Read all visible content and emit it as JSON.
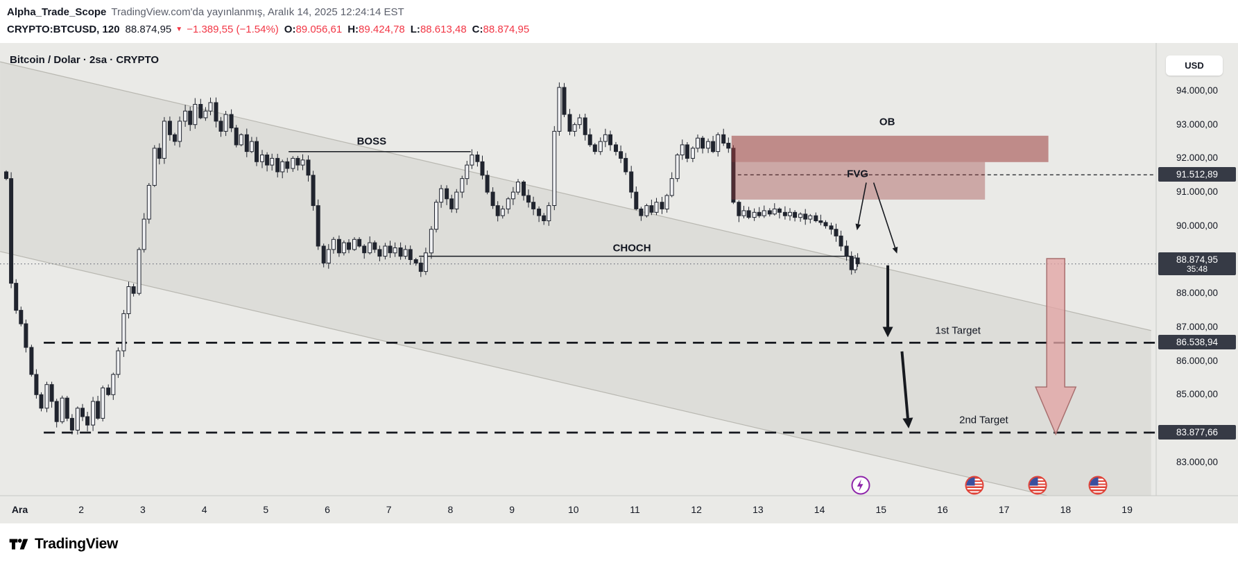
{
  "header": {
    "author": "Alpha_Trade_Scope",
    "published": "TradingView.com'da yayınlanmış, Aralık 14, 2025 12:24:14 EST",
    "symbol": "CRYPTO:BTCUSD, 120",
    "last_price": "88.874,95",
    "direction_icon": "▼",
    "change": "−1.389,55 (−1.54%)",
    "ohlc": [
      {
        "label": "O:",
        "value": "89.056,61"
      },
      {
        "label": "H:",
        "value": "89.424,78"
      },
      {
        "label": "L:",
        "value": "88.613,48"
      },
      {
        "label": "C:",
        "value": "88.874,95"
      }
    ]
  },
  "chart": {
    "legend": "Bitcoin / Dolar · 2sa · CRYPTO",
    "currency_button": "USD"
  },
  "price_axis": {
    "ticks": [
      {
        "text": "94.000,00",
        "price": 94000
      },
      {
        "text": "93.000,00",
        "price": 93000
      },
      {
        "text": "92.000,00",
        "price": 92000
      },
      {
        "text": "91.000,00",
        "price": 91000
      },
      {
        "text": "90.000,00",
        "price": 90000
      },
      {
        "text": "88.000,00",
        "price": 88000
      },
      {
        "text": "87.000,00",
        "price": 87000
      },
      {
        "text": "86.000,00",
        "price": 86000
      },
      {
        "text": "85.000,00",
        "price": 85000
      },
      {
        "text": "83.000,00",
        "price": 83000
      }
    ],
    "badges": [
      {
        "text": "91.512,89",
        "price": 91512.89
      },
      {
        "text": "88.874,95",
        "sub": "35:48",
        "price": 88874.95,
        "current": true
      },
      {
        "text": "86.538,94",
        "price": 86538.94
      },
      {
        "text": "83.877,66",
        "price": 83877.66
      }
    ]
  },
  "time_axis": {
    "labels": [
      {
        "text": "Ara",
        "day": 1,
        "bold": true
      },
      {
        "text": "2",
        "day": 2
      },
      {
        "text": "3",
        "day": 3
      },
      {
        "text": "4",
        "day": 4
      },
      {
        "text": "5",
        "day": 5
      },
      {
        "text": "6",
        "day": 6
      },
      {
        "text": "7",
        "day": 7
      },
      {
        "text": "8",
        "day": 8
      },
      {
        "text": "9",
        "day": 9
      },
      {
        "text": "10",
        "day": 10
      },
      {
        "text": "11",
        "day": 11
      },
      {
        "text": "12",
        "day": 12
      },
      {
        "text": "13",
        "day": 13
      },
      {
        "text": "14",
        "day": 14
      },
      {
        "text": "15",
        "day": 15
      },
      {
        "text": "16",
        "day": 16
      },
      {
        "text": "17",
        "day": 17
      },
      {
        "text": "18",
        "day": 18
      },
      {
        "text": "19",
        "day": 19
      }
    ]
  },
  "events": [
    {
      "icon": "lightning",
      "day": 14.67
    },
    {
      "icon": "us-flag",
      "day": 16.52
    },
    {
      "icon": "us-flag",
      "day": 17.55
    },
    {
      "icon": "us-flag",
      "day": 18.53
    }
  ],
  "chart_data": {
    "type": "candlestick",
    "title": "Bitcoin / Dolar · 2sa · CRYPTO",
    "symbol": "BTCUSD",
    "interval_minutes": 120,
    "x_unit": "day of December 2025",
    "x_range": [
      0.7,
      19.5
    ],
    "y_range": [
      82500,
      95500
    ],
    "last": 88874.95,
    "seed": 7,
    "key_points": [
      [
        0.78,
        91400
      ],
      [
        0.86,
        88300
      ],
      [
        0.94,
        87500
      ],
      [
        1.02,
        87100
      ],
      [
        1.1,
        86400
      ],
      [
        1.19,
        85600
      ],
      [
        1.27,
        85000
      ],
      [
        1.35,
        84600
      ],
      [
        1.44,
        85300
      ],
      [
        1.52,
        84800
      ],
      [
        1.6,
        84200
      ],
      [
        1.69,
        84900
      ],
      [
        1.77,
        84300
      ],
      [
        1.85,
        83950
      ],
      [
        1.94,
        84600
      ],
      [
        2.02,
        84350
      ],
      [
        2.1,
        84100
      ],
      [
        2.19,
        84800
      ],
      [
        2.27,
        84300
      ],
      [
        2.35,
        85200
      ],
      [
        2.44,
        85000
      ],
      [
        2.52,
        85600
      ],
      [
        2.6,
        86300
      ],
      [
        2.69,
        87400
      ],
      [
        2.77,
        88200
      ],
      [
        2.85,
        88000
      ],
      [
        2.94,
        89300
      ],
      [
        3.02,
        90200
      ],
      [
        3.1,
        91200
      ],
      [
        3.19,
        92300
      ],
      [
        3.27,
        92000
      ],
      [
        3.35,
        93100
      ],
      [
        3.44,
        92700
      ],
      [
        3.52,
        92500
      ],
      [
        3.6,
        93100
      ],
      [
        3.69,
        93400
      ],
      [
        3.77,
        93000
      ],
      [
        3.85,
        93600
      ],
      [
        3.94,
        93200
      ],
      [
        4.02,
        93400
      ],
      [
        4.1,
        93650
      ],
      [
        4.19,
        93100
      ],
      [
        4.27,
        92800
      ],
      [
        4.35,
        93300
      ],
      [
        4.44,
        92900
      ],
      [
        4.52,
        92400
      ],
      [
        4.6,
        92700
      ],
      [
        4.69,
        92200
      ],
      [
        4.77,
        92500
      ],
      [
        4.85,
        91900
      ],
      [
        4.94,
        92100
      ],
      [
        5.02,
        91800
      ],
      [
        5.1,
        92000
      ],
      [
        5.19,
        91600
      ],
      [
        5.27,
        91900
      ],
      [
        5.35,
        91700
      ],
      [
        5.44,
        92000
      ],
      [
        5.52,
        91800
      ],
      [
        5.6,
        91950
      ],
      [
        5.69,
        91500
      ],
      [
        5.77,
        90600
      ],
      [
        5.85,
        89400
      ],
      [
        5.94,
        88900
      ],
      [
        6.02,
        89300
      ],
      [
        6.1,
        89600
      ],
      [
        6.19,
        89200
      ],
      [
        6.27,
        89500
      ],
      [
        6.35,
        89300
      ],
      [
        6.44,
        89600
      ],
      [
        6.52,
        89400
      ],
      [
        6.6,
        89200
      ],
      [
        6.69,
        89500
      ],
      [
        6.77,
        89300
      ],
      [
        6.85,
        89100
      ],
      [
        6.94,
        89400
      ],
      [
        7.02,
        89200
      ],
      [
        7.1,
        89350
      ],
      [
        7.19,
        89100
      ],
      [
        7.27,
        89300
      ],
      [
        7.35,
        89000
      ],
      [
        7.44,
        88900
      ],
      [
        7.52,
        88650
      ],
      [
        7.6,
        89200
      ],
      [
        7.69,
        89900
      ],
      [
        7.77,
        90700
      ],
      [
        7.85,
        91100
      ],
      [
        7.94,
        90800
      ],
      [
        8.02,
        90500
      ],
      [
        8.1,
        91000
      ],
      [
        8.19,
        91400
      ],
      [
        8.27,
        91800
      ],
      [
        8.35,
        92100
      ],
      [
        8.44,
        91900
      ],
      [
        8.52,
        91500
      ],
      [
        8.6,
        91000
      ],
      [
        8.69,
        90600
      ],
      [
        8.77,
        90300
      ],
      [
        8.85,
        90500
      ],
      [
        8.94,
        90800
      ],
      [
        9.02,
        91000
      ],
      [
        9.1,
        91300
      ],
      [
        9.19,
        90900
      ],
      [
        9.27,
        90700
      ],
      [
        9.35,
        90500
      ],
      [
        9.44,
        90300
      ],
      [
        9.52,
        90150
      ],
      [
        9.6,
        90600
      ],
      [
        9.69,
        92800
      ],
      [
        9.77,
        94100
      ],
      [
        9.85,
        93300
      ],
      [
        9.94,
        92800
      ],
      [
        10.02,
        93000
      ],
      [
        10.1,
        93200
      ],
      [
        10.19,
        92700
      ],
      [
        10.27,
        92400
      ],
      [
        10.35,
        92200
      ],
      [
        10.44,
        92500
      ],
      [
        10.52,
        92700
      ],
      [
        10.6,
        92400
      ],
      [
        10.69,
        92200
      ],
      [
        10.77,
        92000
      ],
      [
        10.85,
        91600
      ],
      [
        10.94,
        91000
      ],
      [
        11.02,
        90500
      ],
      [
        11.1,
        90300
      ],
      [
        11.19,
        90600
      ],
      [
        11.27,
        90400
      ],
      [
        11.35,
        90700
      ],
      [
        11.44,
        90500
      ],
      [
        11.52,
        90900
      ],
      [
        11.6,
        91400
      ],
      [
        11.69,
        92100
      ],
      [
        11.77,
        92400
      ],
      [
        11.85,
        92000
      ],
      [
        11.94,
        92300
      ],
      [
        12.02,
        92600
      ],
      [
        12.1,
        92300
      ],
      [
        12.19,
        92500
      ],
      [
        12.27,
        92200
      ],
      [
        12.35,
        92700
      ],
      [
        12.44,
        92450
      ],
      [
        12.52,
        92300
      ],
      [
        12.6,
        90700
      ],
      [
        12.69,
        90300
      ],
      [
        12.77,
        90450
      ],
      [
        12.85,
        90250
      ],
      [
        12.94,
        90400
      ],
      [
        13.02,
        90300
      ],
      [
        13.1,
        90450
      ],
      [
        13.19,
        90350
      ],
      [
        13.27,
        90500
      ],
      [
        13.35,
        90400
      ],
      [
        13.44,
        90300
      ],
      [
        13.52,
        90400
      ],
      [
        13.6,
        90250
      ],
      [
        13.69,
        90350
      ],
      [
        13.77,
        90200
      ],
      [
        13.85,
        90300
      ],
      [
        13.94,
        90150
      ],
      [
        14.02,
        90100
      ],
      [
        14.1,
        90000
      ],
      [
        14.19,
        89900
      ],
      [
        14.27,
        89700
      ],
      [
        14.35,
        89400
      ],
      [
        14.44,
        89100
      ],
      [
        14.52,
        88700
      ],
      [
        14.58,
        89050
      ],
      [
        14.62,
        88874.95
      ]
    ],
    "levels": [
      {
        "name": "BOSS",
        "price": 92200,
        "from_day": 5.37,
        "to_day": 8.33,
        "style": "solid"
      },
      {
        "name": "CHOCH",
        "price": 89100,
        "from_day": 7.49,
        "to_day": 14.5,
        "style": "solid"
      },
      {
        "name": "FVG level",
        "price": 91512.89,
        "from_day": 12.57,
        "to_day": 19.6,
        "style": "dashed"
      },
      {
        "name": "1st Target",
        "price": 86538.94,
        "from_day": 1.39,
        "to_day": 19.6,
        "style": "dashed-bold"
      },
      {
        "name": "2nd Target",
        "price": 83877.66,
        "from_day": 1.39,
        "to_day": 19.6,
        "style": "dashed-bold"
      },
      {
        "name": "Last price",
        "price": 88874.95,
        "style": "dotted"
      }
    ],
    "zones": [
      {
        "name": "OB",
        "top": 92670,
        "bottom": 91890,
        "from_day": 12.57,
        "to_day": 17.72,
        "fill": "ob"
      },
      {
        "name": "FVG",
        "top": 91890,
        "bottom": 90780,
        "from_day": 12.57,
        "to_day": 16.69,
        "fill": "fvg"
      }
    ],
    "channel": {
      "upper": [
        [
          0.68,
          94860
        ],
        [
          19.39,
          86900
        ]
      ],
      "lower": [
        [
          0.68,
          89240
        ],
        [
          19.39,
          81290
        ]
      ]
    },
    "arrows": [
      {
        "kind": "thin",
        "from": [
          14.76,
          91280
        ],
        "to": [
          14.61,
          89870
        ]
      },
      {
        "kind": "thin",
        "from": [
          14.88,
          91280
        ],
        "to": [
          15.26,
          89180
        ]
      },
      {
        "kind": "thick",
        "from": [
          15.11,
          88830
        ],
        "to": [
          15.11,
          86700
        ]
      },
      {
        "kind": "thick",
        "from": [
          15.34,
          86280
        ],
        "to": [
          15.45,
          84000
        ]
      }
    ],
    "big_arrow": {
      "day": 17.84,
      "from_price": 89030,
      "to_price": 83830
    },
    "labels": [
      {
        "text": "BOSS",
        "day": 6.72,
        "price": 92500,
        "cls": ""
      },
      {
        "text": "CHOCH",
        "day": 10.95,
        "price": 89330,
        "cls": ""
      },
      {
        "text": "OB",
        "day": 15.1,
        "price": 93080,
        "cls": ""
      },
      {
        "text": "FVG",
        "day": 14.62,
        "price": 91530,
        "cls": ""
      },
      {
        "text": "1st Target",
        "day": 16.25,
        "price": 86900,
        "cls": "target"
      },
      {
        "text": "2nd Target",
        "day": 16.67,
        "price": 84240,
        "cls": "target"
      }
    ]
  },
  "colors": {
    "accent_red": "#f23645",
    "chart_bg": "#eaeae7",
    "candle_border": "#20242e",
    "candle_up_fill": "#f0f1f3",
    "candle_down_fill": "#20242e",
    "channel_fill": "rgba(110,108,95,0.10)",
    "channel_line": "rgba(150,148,138,0.55)",
    "zone_ob": "rgba(155,61,61,0.55)",
    "zone_fvg": "rgba(155,61,61,0.38)",
    "badge_bg": "#363a45",
    "line_dark": "#16191f",
    "dotted_line": "#6f737e",
    "axis_border": "#c7c8c4",
    "pink_arrow_fill": "rgba(226,164,164,0.78)",
    "pink_arrow_stroke": "#a86f6f"
  },
  "footer": {
    "brand": "TradingView"
  }
}
